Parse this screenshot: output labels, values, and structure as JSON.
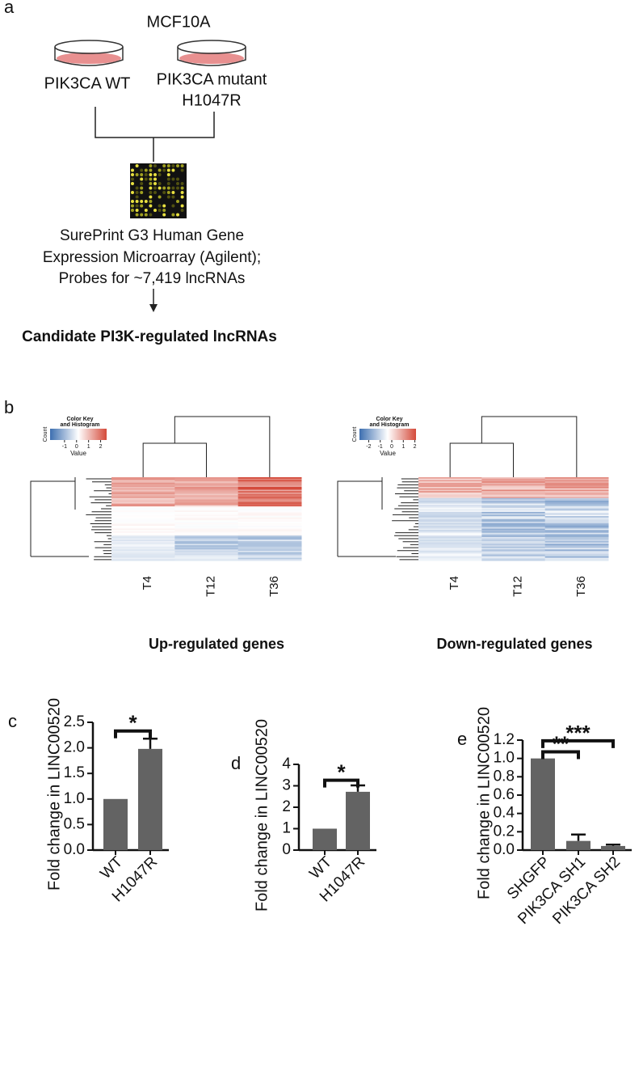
{
  "panel_a": {
    "label": "a",
    "cell_line": "MCF10A",
    "condition_left": "PIK3CA WT",
    "condition_right_lines": [
      "PIK3CA mutant",
      "H1047R"
    ],
    "platform_lines": [
      "SurePrint G3 Human Gene",
      "Expression Microarray (Agilent);",
      "Probes for ~7,419 lncRNAs"
    ],
    "result": "Candidate PI3K-regulated lncRNAs"
  },
  "panel_b": {
    "label": "b",
    "heatmaps": [
      {
        "title": "Up-regulated genes",
        "columns": [
          "T4",
          "T12",
          "T36"
        ],
        "key_title_lines": [
          "Color Key",
          "and Histogram"
        ],
        "key_ylabel": "Count",
        "key_xlabel": "Value",
        "key_lim": [
          -2.2,
          2.5
        ],
        "key_ticks": [
          -1,
          0,
          1,
          2
        ]
      },
      {
        "title": "Down-regulated genes",
        "columns": [
          "T4",
          "T12",
          "T36"
        ],
        "key_title_lines": [
          "Color Key",
          "and Histogram"
        ],
        "key_ylabel": "Count",
        "key_xlabel": "Value",
        "key_lim": [
          -2.8,
          2.1
        ],
        "key_ticks": [
          -2,
          -1,
          0,
          1,
          2
        ]
      }
    ]
  },
  "chart_data": [
    {
      "type": "bar",
      "panel_label": "c",
      "y_label": "Fold change in LINC00520",
      "categories": [
        "WT",
        "H1047R"
      ],
      "values": [
        1.0,
        1.98
      ],
      "errors": [
        null,
        0.2
      ],
      "color": "#636363",
      "ylim": [
        0,
        2.5
      ],
      "yticks": [
        {
          "value": 0,
          "label": "0.0"
        },
        {
          "value": 0.5,
          "label": "0.5"
        },
        {
          "value": 1,
          "label": "1.0"
        },
        {
          "value": 1.5,
          "label": "1.5"
        },
        {
          "value": 2,
          "label": "2.0"
        },
        {
          "value": 2.5,
          "label": "2.5"
        }
      ],
      "annotations": [
        {
          "text": "*",
          "from": "WT",
          "to": "H1047R"
        }
      ]
    },
    {
      "type": "bar",
      "panel_label": "d",
      "y_label": "Fold change in LINC00520",
      "categories": [
        "WT",
        "H1047R"
      ],
      "values": [
        1.0,
        2.72
      ],
      "errors": [
        null,
        0.3
      ],
      "color": "#636363",
      "ylim": [
        0,
        4
      ],
      "yticks": [
        0,
        1,
        2,
        3,
        4
      ],
      "annotations": [
        {
          "text": "*",
          "from": "WT",
          "to": "H1047R"
        }
      ]
    },
    {
      "type": "bar",
      "panel_label": "e",
      "y_label": "Fold change in LINC00520",
      "categories": [
        "SHGFP",
        "PIK3CA SH1",
        "PIK3CA SH2"
      ],
      "values": [
        1.0,
        0.1,
        0.045
      ],
      "errors": [
        null,
        0.07,
        0.015
      ],
      "color": "#636363",
      "ylim": [
        0,
        1.2
      ],
      "yticks": [
        {
          "value": 0,
          "label": "0.0"
        },
        {
          "value": 0.2,
          "label": "0.2"
        },
        {
          "value": 0.4,
          "label": "0.4"
        },
        {
          "value": 0.6,
          "label": "0.6"
        },
        {
          "value": 0.8,
          "label": "0.8"
        },
        {
          "value": 1,
          "label": "1.0"
        },
        {
          "value": 1.2,
          "label": "1.2"
        }
      ],
      "annotations": [
        {
          "text": "**",
          "from": "SHGFP",
          "to": "PIK3CA SH1"
        },
        {
          "text": "***",
          "from": "SHGFP",
          "to": "PIK3CA SH2"
        }
      ]
    }
  ]
}
